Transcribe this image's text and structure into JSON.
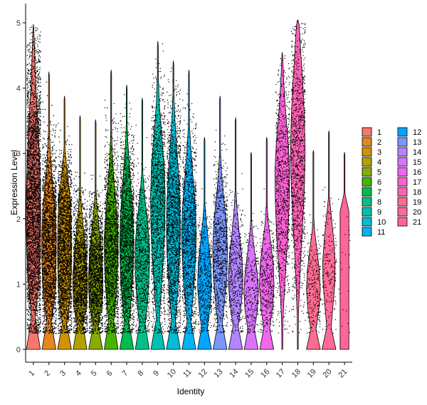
{
  "chart_data": {
    "type": "violin",
    "xlabel": "Identity",
    "ylabel": "Expression Level",
    "ylim": [
      -0.2,
      5.1
    ],
    "yticks": [
      0,
      1,
      2,
      3,
      4,
      5
    ],
    "points_overlay": true,
    "legend_position": "right",
    "series": [
      {
        "name": "1",
        "color": "#F8766D",
        "max": 4.98,
        "density": [
          0.95,
          0.25,
          0.7,
          0.9,
          1.0,
          0.95,
          0.8,
          0.6,
          0.35,
          0.18,
          0.04
        ],
        "cells": 4000
      },
      {
        "name": "2",
        "color": "#E7851E",
        "max": 4.25,
        "density": [
          0.95,
          0.3,
          0.8,
          0.95,
          1.0,
          0.85,
          0.5,
          0.2,
          0.05,
          0.01,
          0
        ],
        "cells": 3600
      },
      {
        "name": "3",
        "color": "#D09400",
        "max": 3.88,
        "density": [
          0.95,
          0.3,
          0.75,
          0.9,
          0.95,
          0.9,
          0.75,
          0.35,
          0.04,
          0,
          0
        ],
        "cells": 3300
      },
      {
        "name": "4",
        "color": "#B2A100",
        "max": 3.58,
        "density": [
          0.95,
          0.4,
          0.9,
          1.0,
          0.8,
          0.5,
          0.2,
          0.04,
          0,
          0,
          0
        ],
        "cells": 2600
      },
      {
        "name": "5",
        "color": "#89AC00",
        "max": 3.52,
        "density": [
          0.95,
          0.35,
          0.85,
          1.0,
          0.85,
          0.55,
          0.25,
          0.03,
          0,
          0,
          0
        ],
        "cells": 2400
      },
      {
        "name": "6",
        "color": "#45B500",
        "max": 4.28,
        "density": [
          0.95,
          0.35,
          0.7,
          0.9,
          0.95,
          0.7,
          0.4,
          0.15,
          0.04,
          0.01,
          0
        ],
        "cells": 2200
      },
      {
        "name": "7",
        "color": "#00BC51",
        "max": 4.05,
        "density": [
          0.95,
          0.3,
          0.65,
          0.85,
          0.95,
          0.85,
          0.6,
          0.35,
          0.12,
          0.02,
          0
        ],
        "cells": 2000
      },
      {
        "name": "8",
        "color": "#00C087",
        "max": 3.85,
        "density": [
          0.95,
          0.4,
          0.75,
          0.95,
          1.0,
          0.75,
          0.35,
          0.08,
          0.02,
          0,
          0
        ],
        "cells": 900
      },
      {
        "name": "9",
        "color": "#00C0B2",
        "max": 4.72,
        "density": [
          0.95,
          0.2,
          0.5,
          0.75,
          0.95,
          1.0,
          0.85,
          0.5,
          0.2,
          0.05,
          0.01
        ],
        "cells": 1500
      },
      {
        "name": "10",
        "color": "#00BCD6",
        "max": 4.42,
        "density": [
          0.95,
          0.25,
          0.6,
          0.8,
          0.95,
          0.9,
          0.7,
          0.45,
          0.2,
          0.04,
          0
        ],
        "cells": 1800
      },
      {
        "name": "11",
        "color": "#00B3F2",
        "max": 4.28,
        "density": [
          0.95,
          0.25,
          0.6,
          0.85,
          1.0,
          0.9,
          0.6,
          0.3,
          0.08,
          0.01,
          0
        ],
        "cells": 1400
      },
      {
        "name": "12",
        "color": "#00A6FF",
        "max": 3.25,
        "density": [
          0.95,
          0.4,
          0.75,
          0.95,
          0.85,
          0.55,
          0.25,
          0.03,
          0,
          0,
          0
        ],
        "cells": 500
      },
      {
        "name": "13",
        "color": "#7C96FF",
        "max": 3.88,
        "density": [
          0.95,
          0.3,
          0.65,
          0.95,
          1.0,
          0.85,
          0.5,
          0.2,
          0.03,
          0,
          0
        ],
        "cells": 900
      },
      {
        "name": "14",
        "color": "#B385FF",
        "max": 3.55,
        "density": [
          0.95,
          0.35,
          0.8,
          1.0,
          0.85,
          0.5,
          0.2,
          0.04,
          0,
          0,
          0
        ],
        "cells": 500
      },
      {
        "name": "15",
        "color": "#D874FD",
        "max": 3.02,
        "density": [
          0.95,
          0.45,
          0.85,
          1.0,
          0.8,
          0.45,
          0.15,
          0,
          0,
          0,
          0
        ],
        "cells": 300
      },
      {
        "name": "16",
        "color": "#EF67EB",
        "max": 3.25,
        "density": [
          0.95,
          0.4,
          0.8,
          1.0,
          0.9,
          0.55,
          0.2,
          0.03,
          0,
          0,
          0
        ],
        "cells": 400
      },
      {
        "name": "17",
        "color": "#FD61D3",
        "max": 4.55,
        "density": [
          0.05,
          0.1,
          0.3,
          0.55,
          0.8,
          0.95,
          1.0,
          0.8,
          0.45,
          0.2,
          0.04
        ],
        "cells": 900
      },
      {
        "name": "18",
        "color": "#FF63B6",
        "max": 5.05,
        "density": [
          0.05,
          0.08,
          0.25,
          0.45,
          0.7,
          0.9,
          1.0,
          0.9,
          0.7,
          0.4,
          0.15
        ],
        "cells": 1100
      },
      {
        "name": "19",
        "color": "#FF6C92",
        "max": 3.05,
        "density": [
          0.95,
          0.35,
          0.75,
          0.95,
          0.8,
          0.5,
          0.15,
          0,
          0,
          0,
          0
        ],
        "cells": 250
      },
      {
        "name": "20",
        "color": "#FF6A98",
        "max": 3.35,
        "density": [
          0.95,
          0.3,
          0.55,
          0.8,
          0.85,
          0.65,
          0.35,
          0.05,
          0,
          0,
          0
        ],
        "cells": 200
      },
      {
        "name": "21",
        "color": "#FF6699",
        "max": 3.02,
        "density": [
          0.6,
          0.6,
          0.6,
          0.6,
          0.6,
          0.6,
          0.6,
          0.6,
          0,
          0,
          0
        ],
        "cells": 20
      }
    ]
  }
}
